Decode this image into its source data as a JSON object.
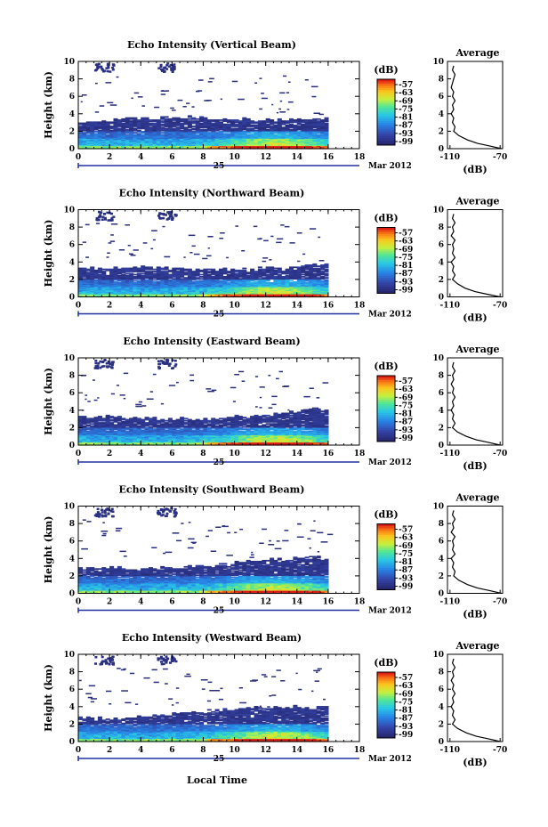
{
  "figure": {
    "xlabel": "Local Time",
    "date_day": "25",
    "date_month": "Mar 2012",
    "colorbar_unit": "(dB)",
    "avg_title": "Average",
    "avg_xlabel": "(dB)"
  },
  "chart_data": [
    {
      "type": "heatmap",
      "title": "Echo Intensity (Vertical Beam)",
      "ylabel": "Height (km)",
      "xticks": [
        0,
        2,
        4,
        6,
        8,
        10,
        12,
        14,
        16,
        18
      ],
      "xlim": [
        0,
        18
      ],
      "yticks": [
        0,
        2,
        4,
        6,
        8,
        10
      ],
      "ylim": [
        0,
        10
      ],
      "colorbar": {
        "ticks": [
          -57,
          -63,
          -69,
          -75,
          -81,
          -87,
          -93,
          -99
        ]
      },
      "average_profile": {
        "xticks": [
          -110,
          -70
        ],
        "xlim": [
          -112,
          -68
        ],
        "yticks": [
          0,
          2,
          4,
          6,
          8,
          10
        ],
        "x": [
          -69,
          -78,
          -88,
          -96,
          -103,
          -107,
          -106,
          -108,
          -107,
          -109,
          -107,
          -108,
          -106,
          -108,
          -107,
          -109,
          -108,
          -107,
          -106,
          -108,
          -107
        ],
        "y": [
          0,
          0.3,
          0.6,
          1.0,
          1.5,
          2.0,
          2.5,
          3.0,
          3.5,
          4.0,
          4.5,
          5.0,
          5.5,
          6.0,
          6.5,
          7.0,
          7.5,
          8.0,
          8.5,
          9.0,
          9.5
        ]
      }
    },
    {
      "type": "heatmap",
      "title": "Echo Intensity (Northward Beam)",
      "ylabel": "Height (km)",
      "xticks": [
        0,
        2,
        4,
        6,
        8,
        10,
        12,
        14,
        16,
        18
      ],
      "xlim": [
        0,
        18
      ],
      "yticks": [
        0,
        2,
        4,
        6,
        8,
        10
      ],
      "ylim": [
        0,
        10
      ],
      "colorbar": {
        "ticks": [
          -57,
          -63,
          -69,
          -75,
          -81,
          -87,
          -93,
          -99
        ]
      },
      "average_profile": {
        "xticks": [
          -110,
          -70
        ],
        "xlim": [
          -112,
          -68
        ],
        "yticks": [
          0,
          2,
          4,
          6,
          8,
          10
        ],
        "x": [
          -70,
          -80,
          -90,
          -98,
          -104,
          -108,
          -106,
          -108,
          -107,
          -109,
          -106,
          -108,
          -107,
          -108,
          -106,
          -109,
          -107,
          -108,
          -106,
          -108,
          -107
        ],
        "y": [
          0,
          0.3,
          0.6,
          1.0,
          1.5,
          2.0,
          2.5,
          3.0,
          3.5,
          4.0,
          4.5,
          5.0,
          5.5,
          6.0,
          6.5,
          7.0,
          7.5,
          8.0,
          8.5,
          9.0,
          9.5
        ]
      }
    },
    {
      "type": "heatmap",
      "title": "Echo Intensity (Eastward Beam)",
      "ylabel": "Height (km)",
      "xticks": [
        0,
        2,
        4,
        6,
        8,
        10,
        12,
        14,
        16,
        18
      ],
      "xlim": [
        0,
        18
      ],
      "yticks": [
        0,
        2,
        4,
        6,
        8,
        10
      ],
      "ylim": [
        0,
        10
      ],
      "colorbar": {
        "ticks": [
          -57,
          -63,
          -69,
          -75,
          -81,
          -87,
          -93,
          -99
        ]
      },
      "average_profile": {
        "xticks": [
          -110,
          -70
        ],
        "xlim": [
          -112,
          -68
        ],
        "yticks": [
          0,
          2,
          4,
          6,
          8,
          10
        ],
        "x": [
          -70,
          -79,
          -89,
          -97,
          -104,
          -108,
          -106,
          -108,
          -107,
          -109,
          -107,
          -108,
          -106,
          -108,
          -107,
          -109,
          -107,
          -108,
          -106,
          -108,
          -107
        ],
        "y": [
          0,
          0.3,
          0.6,
          1.0,
          1.5,
          2.0,
          2.5,
          3.0,
          3.5,
          4.0,
          4.5,
          5.0,
          5.5,
          6.0,
          6.5,
          7.0,
          7.5,
          8.0,
          8.5,
          9.0,
          9.5
        ]
      }
    },
    {
      "type": "heatmap",
      "title": "Echo Intensity (Southward Beam)",
      "ylabel": "Height (km)",
      "xticks": [
        0,
        2,
        4,
        6,
        8,
        10,
        12,
        14,
        16,
        18
      ],
      "xlim": [
        0,
        18
      ],
      "yticks": [
        0,
        2,
        4,
        6,
        8,
        10
      ],
      "ylim": [
        0,
        10
      ],
      "colorbar": {
        "ticks": [
          -57,
          -63,
          -69,
          -75,
          -81,
          -87,
          -93,
          -99
        ]
      },
      "average_profile": {
        "xticks": [
          -110,
          -70
        ],
        "xlim": [
          -112,
          -68
        ],
        "yticks": [
          0,
          2,
          4,
          6,
          8,
          10
        ],
        "x": [
          -69,
          -78,
          -88,
          -96,
          -103,
          -107,
          -106,
          -108,
          -107,
          -109,
          -106,
          -108,
          -107,
          -108,
          -106,
          -109,
          -107,
          -108,
          -106,
          -108,
          -107
        ],
        "y": [
          0,
          0.3,
          0.6,
          1.0,
          1.5,
          2.0,
          2.5,
          3.0,
          3.5,
          4.0,
          4.5,
          5.0,
          5.5,
          6.0,
          6.5,
          7.0,
          7.5,
          8.0,
          8.5,
          9.0,
          9.5
        ]
      }
    },
    {
      "type": "heatmap",
      "title": "Echo Intensity (Westward Beam)",
      "ylabel": "Height (km)",
      "xticks": [
        0,
        2,
        4,
        6,
        8,
        10,
        12,
        14,
        16,
        18
      ],
      "xlim": [
        0,
        18
      ],
      "yticks": [
        0,
        2,
        4,
        6,
        8,
        10
      ],
      "ylim": [
        0,
        10
      ],
      "colorbar": {
        "ticks": [
          -57,
          -63,
          -69,
          -75,
          -81,
          -87,
          -93,
          -99
        ]
      },
      "average_profile": {
        "xticks": [
          -110,
          -70
        ],
        "xlim": [
          -112,
          -68
        ],
        "yticks": [
          0,
          2,
          4,
          6,
          8,
          10
        ],
        "x": [
          -70,
          -79,
          -89,
          -97,
          -104,
          -108,
          -106,
          -108,
          -107,
          -109,
          -107,
          -108,
          -106,
          -108,
          -107,
          -109,
          -107,
          -108,
          -106,
          -108,
          -107
        ],
        "y": [
          0,
          0.3,
          0.6,
          1.0,
          1.5,
          2.0,
          2.5,
          3.0,
          3.5,
          4.0,
          4.5,
          5.0,
          5.5,
          6.0,
          6.5,
          7.0,
          7.5,
          8.0,
          8.5,
          9.0,
          9.5
        ]
      }
    }
  ]
}
